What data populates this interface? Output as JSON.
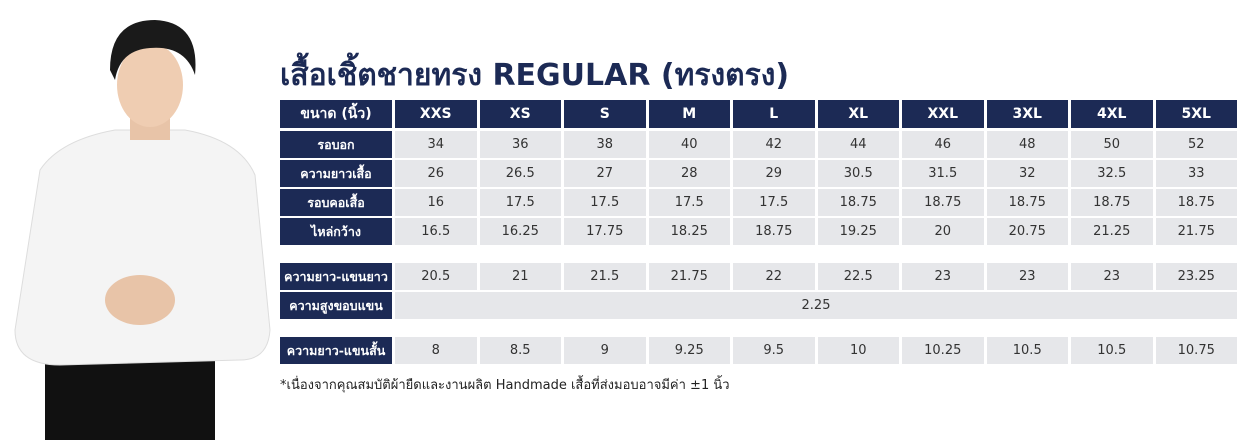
{
  "title": "เสื้อเชิ้ตชายทรง REGULAR (ทรงตรง)",
  "table": {
    "header": [
      "ขนาด (นิ้ว)",
      "XXS",
      "XS",
      "S",
      "M",
      "L",
      "XL",
      "XXL",
      "3XL",
      "4XL",
      "5XL"
    ],
    "groups": [
      {
        "rows": [
          {
            "label": "รอบอก",
            "values": [
              34,
              36,
              38,
              40,
              42,
              44,
              46,
              48,
              50,
              52
            ]
          },
          {
            "label": "ความยาวเสื้อ",
            "values": [
              26,
              26.5,
              27,
              28,
              29,
              30.5,
              31.5,
              32,
              32.5,
              33
            ]
          },
          {
            "label": "รอบคอเสื้อ",
            "values": [
              16,
              17.5,
              17.5,
              17.5,
              17.5,
              18.75,
              18.75,
              18.75,
              18.75,
              18.75
            ]
          },
          {
            "label": "ไหล่กว้าง",
            "values": [
              16.5,
              16.25,
              17.75,
              18.25,
              18.75,
              19.25,
              20,
              20.75,
              21.25,
              21.75
            ]
          }
        ]
      },
      {
        "rows": [
          {
            "label": "ความยาว-แขนยาว",
            "values": [
              20.5,
              21,
              21.5,
              21.75,
              22,
              22.5,
              23,
              23,
              23,
              23.25
            ]
          },
          {
            "label": "ความสูงขอบแขน",
            "value": 2.25
          }
        ]
      },
      {
        "rows": [
          {
            "label": "ความยาว-แขนสั้น",
            "values": [
              8,
              8.5,
              9,
              9.25,
              9.5,
              10,
              10.25,
              10.5,
              10.5,
              10.75
            ]
          }
        ]
      }
    ]
  },
  "footnote": "*เนื่องจากคุณสมบัติผ้ายืดและงานผลิต Handmade เสื้อที่ส่งมอบอาจมีค่า ±1 นิ้ว"
}
